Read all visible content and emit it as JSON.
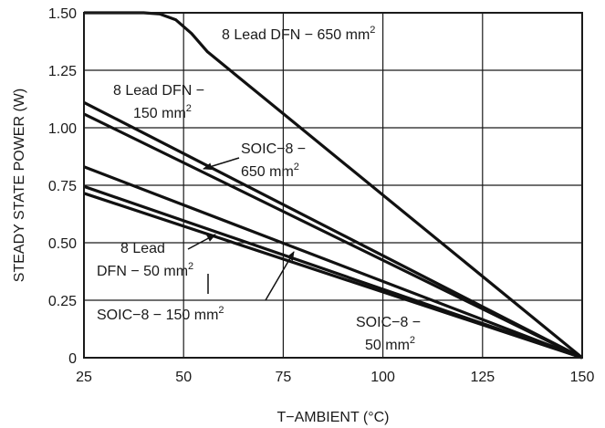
{
  "chart_data": {
    "type": "line",
    "title": "",
    "xlabel": "T−AMBIENT (°C)",
    "ylabel": "STEADY STATE POWER (W)",
    "xlim": [
      25,
      150
    ],
    "ylim": [
      0,
      1.5
    ],
    "x_ticks": [
      "25",
      "50",
      "75",
      "100",
      "125",
      "150"
    ],
    "y_ticks": [
      "0",
      "0.25",
      "0.50",
      "0.75",
      "1.00",
      "1.25",
      "1.50"
    ],
    "grid": true,
    "series": [
      {
        "name": "8 Lead DFN − 650 mm2",
        "points": [
          [
            25,
            1.5
          ],
          [
            40,
            1.5
          ],
          [
            44,
            1.495
          ],
          [
            48,
            1.47
          ],
          [
            52,
            1.41
          ],
          [
            56,
            1.33
          ],
          [
            150,
            0
          ]
        ]
      },
      {
        "name": "8 Lead DFN − 150 mm2",
        "points": [
          [
            25,
            1.11
          ],
          [
            150,
            0
          ]
        ]
      },
      {
        "name": "SOIC−8 − 650 mm2",
        "points": [
          [
            25,
            1.06
          ],
          [
            150,
            0
          ]
        ]
      },
      {
        "name": "8 Lead DFN − 50 mm2",
        "points": [
          [
            25,
            0.83
          ],
          [
            150,
            0
          ]
        ]
      },
      {
        "name": "SOIC−8 − 150 mm2",
        "points": [
          [
            25,
            0.745
          ],
          [
            150,
            0
          ]
        ]
      },
      {
        "name": "SOIC−8 − 50 mm2",
        "points": [
          [
            25,
            0.715
          ],
          [
            150,
            0
          ]
        ]
      }
    ],
    "annotations": [
      {
        "series": 0,
        "lines": [
          {
            "text": "8 Lead DFN − 650 mm",
            "sup": "2"
          }
        ]
      },
      {
        "series": 1,
        "lines": [
          {
            "text": "8 Lead DFN −",
            "sup": ""
          },
          {
            "text": "150 mm",
            "sup": "2"
          }
        ]
      },
      {
        "series": 2,
        "lines": [
          {
            "text": "SOIC−8 −",
            "sup": ""
          },
          {
            "text": "650 mm",
            "sup": "2"
          }
        ]
      },
      {
        "series": 3,
        "lines": [
          {
            "text": "8 Lead",
            "sup": ""
          },
          {
            "text": "DFN − 50 mm",
            "sup": "2"
          }
        ]
      },
      {
        "series": 4,
        "lines": [
          {
            "text": "SOIC−8 − 150 mm",
            "sup": "2"
          }
        ]
      },
      {
        "series": 5,
        "lines": [
          {
            "text": "SOIC−8 −",
            "sup": ""
          },
          {
            "text": "50 mm",
            "sup": "2"
          }
        ]
      }
    ]
  }
}
